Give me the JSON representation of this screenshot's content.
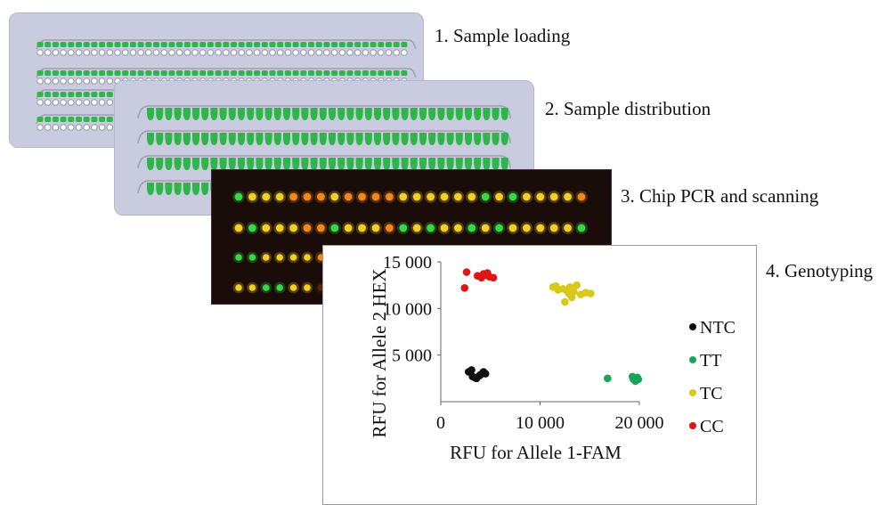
{
  "steps": [
    {
      "label": "1. Sample loading"
    },
    {
      "label": "2. Sample distribution"
    },
    {
      "label": "3. Chip PCR and scanning"
    },
    {
      "label": "4. Genotyping"
    }
  ],
  "colors": {
    "chip_bg": "#c9ccdf",
    "well_green": "#2fb54a",
    "channel_gray": "#9aa0b0",
    "scan_bg": "#1a0c08",
    "ntc": "#111111",
    "tt": "#1aa55a",
    "tc": "#d8c81a",
    "cc": "#e01414"
  },
  "chart_data": {
    "type": "scatter",
    "xlabel": "RFU for Allele 1-FAM",
    "ylabel": "RFU for Allele 2 HEX",
    "xlim": [
      0,
      20000
    ],
    "ylim": [
      0,
      15000
    ],
    "xticks": [
      0,
      10000,
      20000
    ],
    "xtick_labels": [
      "0",
      "10 000",
      "20 000"
    ],
    "yticks": [
      5000,
      10000,
      15000
    ],
    "ytick_labels": [
      "5 000",
      "10 000",
      "15 000"
    ],
    "legend_position": "right",
    "series": [
      {
        "name": "NTC",
        "color": "#111111",
        "x": [
          2800,
          3200,
          3600,
          4000,
          4300,
          3400,
          3900,
          4500,
          3100
        ],
        "y": [
          3200,
          2700,
          2500,
          2900,
          3200,
          2600,
          2800,
          3000,
          3400
        ]
      },
      {
        "name": "TT",
        "color": "#1aa55a",
        "x": [
          16800,
          19300,
          19500,
          19700,
          19900,
          19600,
          19400,
          19800
        ],
        "y": [
          2500,
          2700,
          2500,
          2300,
          2400,
          2200,
          2400,
          2600
        ]
      },
      {
        "name": "TC",
        "color": "#d8c81a",
        "x": [
          11300,
          11800,
          12300,
          12700,
          13000,
          13400,
          13700,
          14100,
          14600,
          15100,
          12500,
          13200,
          11600,
          12900
        ],
        "y": [
          12300,
          12000,
          12100,
          11900,
          12300,
          11800,
          12500,
          11500,
          11700,
          11600,
          10700,
          11200,
          12400,
          11600
        ],
        "marker_shape": "circle"
      },
      {
        "name": "CC",
        "color": "#e01414",
        "x": [
          2600,
          3700,
          4100,
          4500,
          4900,
          5300,
          4700,
          2400,
          4300
        ],
        "y": [
          13900,
          13500,
          13300,
          13600,
          13400,
          13300,
          13800,
          12200,
          13700
        ]
      }
    ]
  }
}
